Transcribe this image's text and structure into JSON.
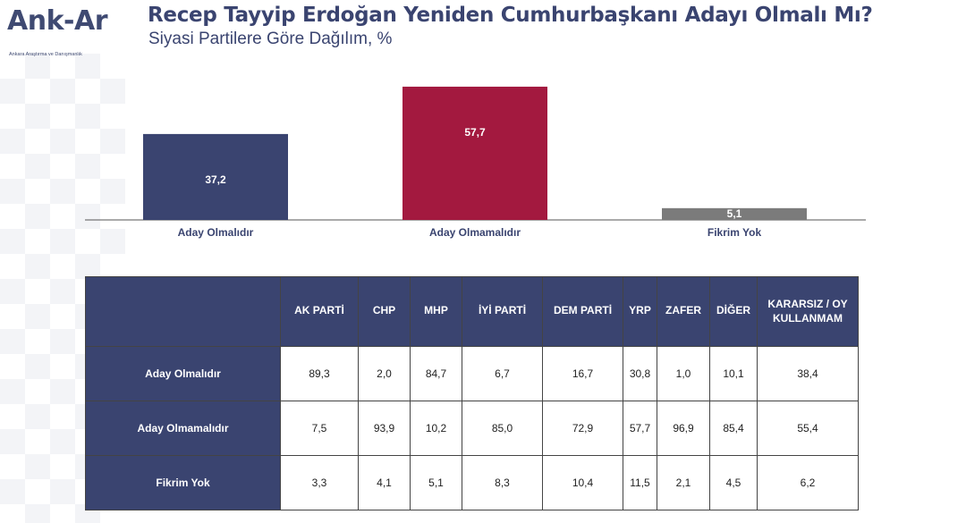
{
  "logo": {
    "name": "Ank-Ar",
    "tagline": "Ankara Araştırma ve Danışmanlık"
  },
  "header": {
    "title": "Recep Tayyip Erdoğan Yeniden Cumhurbaşkanı Adayı Olmalı Mı?",
    "subtitle": "Siyasi Partilere Göre Dağılım, %"
  },
  "chart_data": {
    "type": "bar",
    "categories": [
      "Aday Olmalıdır",
      "Aday Olmamalıdır",
      "Fikrim Yok"
    ],
    "values": [
      37.2,
      57.7,
      5.1
    ],
    "value_labels": [
      "37,2",
      "57,7",
      "5,1"
    ],
    "colors": [
      "#3a4470",
      "#a3193f",
      "#7b7b7b"
    ],
    "title": "",
    "xlabel": "",
    "ylabel": "",
    "ylim": [
      0,
      60
    ],
    "grid": false,
    "legend": "none"
  },
  "table": {
    "columns": [
      "AK PARTİ",
      "CHP",
      "MHP",
      "İYİ PARTİ",
      "DEM PARTİ",
      "YRP",
      "ZAFER",
      "DİĞER",
      "KARARSIZ / OY KULLANMAM"
    ],
    "rows": [
      {
        "label": "Aday Olmalıdır",
        "cells": [
          "89,3",
          "2,0",
          "84,7",
          "6,7",
          "16,7",
          "30,8",
          "1,0",
          "10,1",
          "38,4"
        ]
      },
      {
        "label": "Aday Olmamalıdır",
        "cells": [
          "7,5",
          "93,9",
          "10,2",
          "85,0",
          "72,9",
          "57,7",
          "96,9",
          "85,4",
          "55,4"
        ]
      },
      {
        "label": "Fikrim Yok",
        "cells": [
          "3,3",
          "4,1",
          "5,1",
          "8,3",
          "10,4",
          "11,5",
          "2,1",
          "4,5",
          "6,2"
        ]
      }
    ]
  }
}
